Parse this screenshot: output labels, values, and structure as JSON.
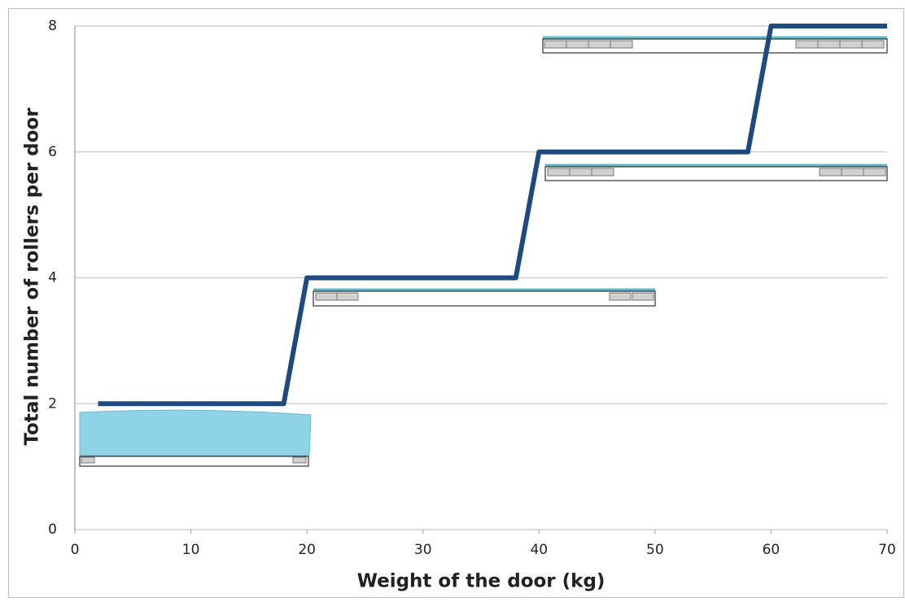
{
  "chart_data": {
    "type": "line",
    "x_label": "Weight of the door (kg)",
    "y_label": "Total number of rollers per door",
    "x": [
      2,
      18,
      20,
      38,
      40,
      58,
      60,
      70
    ],
    "series": [
      {
        "color": "#1f4a80",
        "values": [
          2,
          2,
          4,
          4,
          6,
          6,
          8,
          8
        ]
      }
    ],
    "xlim": [
      0,
      70
    ],
    "xticks": [
      0,
      10,
      20,
      30,
      40,
      50,
      60,
      70
    ],
    "ylim": [
      0,
      8
    ],
    "yticks": [
      0,
      2,
      4,
      6,
      8
    ],
    "grid": true
  }
}
